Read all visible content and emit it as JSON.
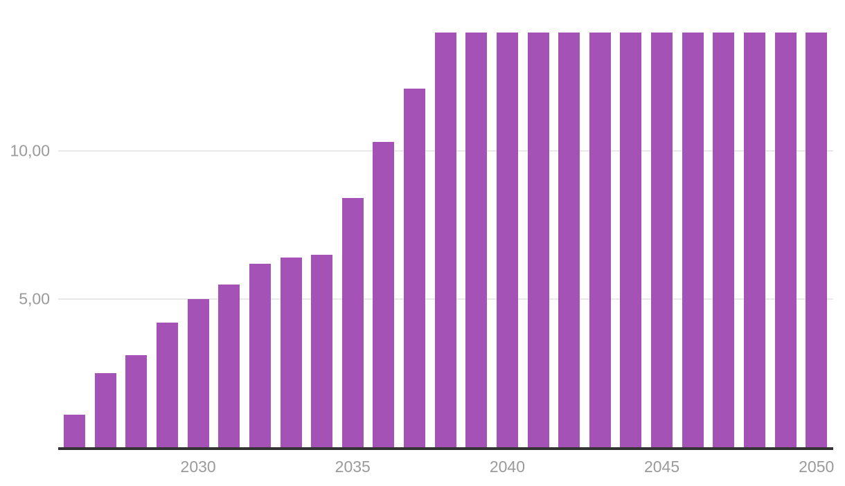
{
  "chart_data": {
    "type": "bar",
    "title": "",
    "xlabel": "",
    "ylabel": "",
    "categories": [
      2026,
      2027,
      2028,
      2029,
      2030,
      2031,
      2032,
      2033,
      2034,
      2035,
      2036,
      2037,
      2038,
      2039,
      2040,
      2041,
      2042,
      2043,
      2044,
      2045,
      2046,
      2047,
      2048,
      2049,
      2050
    ],
    "values": [
      1.1,
      2.5,
      3.1,
      4.2,
      5.0,
      5.5,
      6.2,
      6.4,
      6.5,
      8.4,
      10.3,
      12.1,
      14.0,
      14.0,
      14.0,
      14.0,
      14.0,
      14.0,
      14.0,
      14.0,
      14.0,
      14.0,
      14.0,
      14.0,
      14.0
    ],
    "x_ticks": [
      {
        "year": 2030,
        "label": "2030"
      },
      {
        "year": 2035,
        "label": "2035"
      },
      {
        "year": 2040,
        "label": "2040"
      },
      {
        "year": 2045,
        "label": "2045"
      },
      {
        "year": 2050,
        "label": "2050"
      }
    ],
    "y_ticks": [
      {
        "value": 5,
        "label": "5,00"
      },
      {
        "value": 10,
        "label": "10,00"
      }
    ],
    "ylim": [
      0,
      14.0
    ],
    "grid": "horizontal",
    "legend_position": "none",
    "colors": {
      "bar": "#a452b5",
      "gridline": "#e9e9e9",
      "axis_line": "#333333",
      "tick_label": "#9a9a9a",
      "background": "#ffffff"
    }
  }
}
